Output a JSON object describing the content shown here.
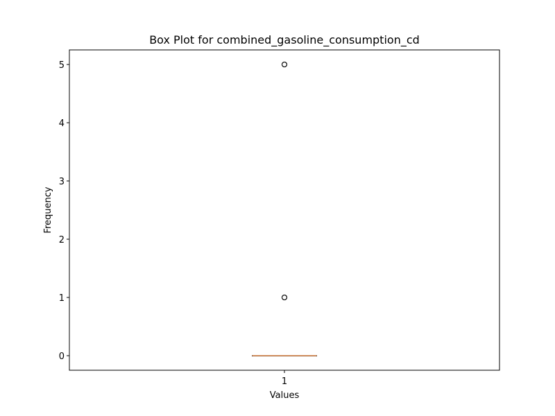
{
  "chart_data": {
    "type": "box",
    "title": "Box Plot for combined_gasoline_consumption_cd",
    "xlabel": "Values",
    "ylabel": "Frequency",
    "categories": [
      "1"
    ],
    "ylim": [
      -0.25,
      5.25
    ],
    "yticks": [
      0,
      1,
      2,
      3,
      4,
      5
    ],
    "grid": false,
    "boxes": [
      {
        "category": "1",
        "q1": 0,
        "median": 0,
        "q3": 0,
        "whisker_low": 0,
        "whisker_high": 0,
        "outliers": [
          1,
          1,
          5,
          5
        ]
      }
    ],
    "colors": {
      "box": "#000000",
      "median": "#e0894a",
      "outlier": "#000000",
      "axes": "#000000"
    }
  }
}
